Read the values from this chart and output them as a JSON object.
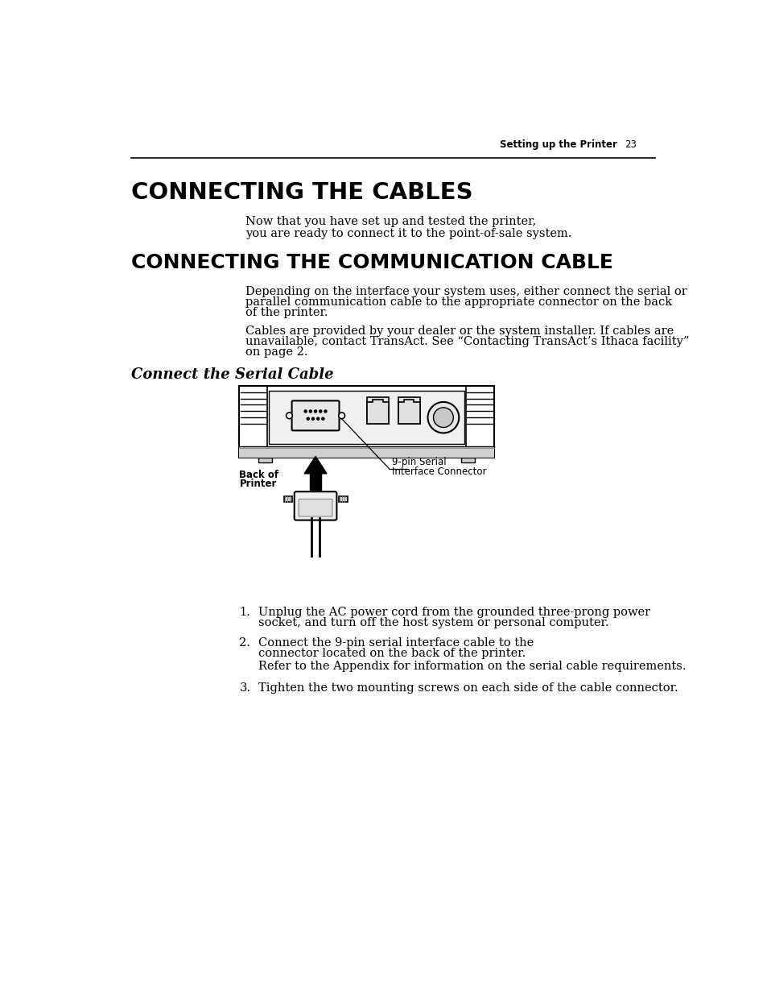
{
  "page_header_text": "Setting up the Printer",
  "page_number": "23",
  "title1": "CONNECTING THE CABLES",
  "subtitle_line1": "Now that you have set up and tested the printer,",
  "subtitle_line2": "you are ready to connect it to the point-of-sale system.",
  "title2": "CONNECTING THE COMMUNICATION CABLE",
  "body1_line1": "Depending on the interface your system uses, either connect the serial or",
  "body1_line2": "parallel communication cable to the appropriate connector on the back",
  "body1_line3": "of the printer.",
  "body2_line1": "Cables are provided by your dealer or the system installer. If cables are",
  "body2_line2": "unavailable, contact TransAct. See “Contacting TransAct’s Ithaca facility”",
  "body2_line3": "on page 2.",
  "section_heading": "Connect the Serial Cable",
  "label_back_line1": "Back of",
  "label_back_line2": "Printer",
  "label_connector_line1": "9-pin Serial",
  "label_connector_line2": "Interface Connector",
  "list_item1_line1": "Unplug the AC power cord from the grounded three-prong power",
  "list_item1_line2": "socket, and turn off the host system or personal computer.",
  "list_item2_line1": "Connect the 9-pin serial interface cable to the",
  "list_item2_line2": "connector located on the back of the printer.",
  "list_item2_line3": "Refer to the Appendix for information on the serial cable requirements.",
  "list_item3": "Tighten the two mounting screws on each side of the cable connector.",
  "bg_color": "#ffffff",
  "text_color": "#000000"
}
